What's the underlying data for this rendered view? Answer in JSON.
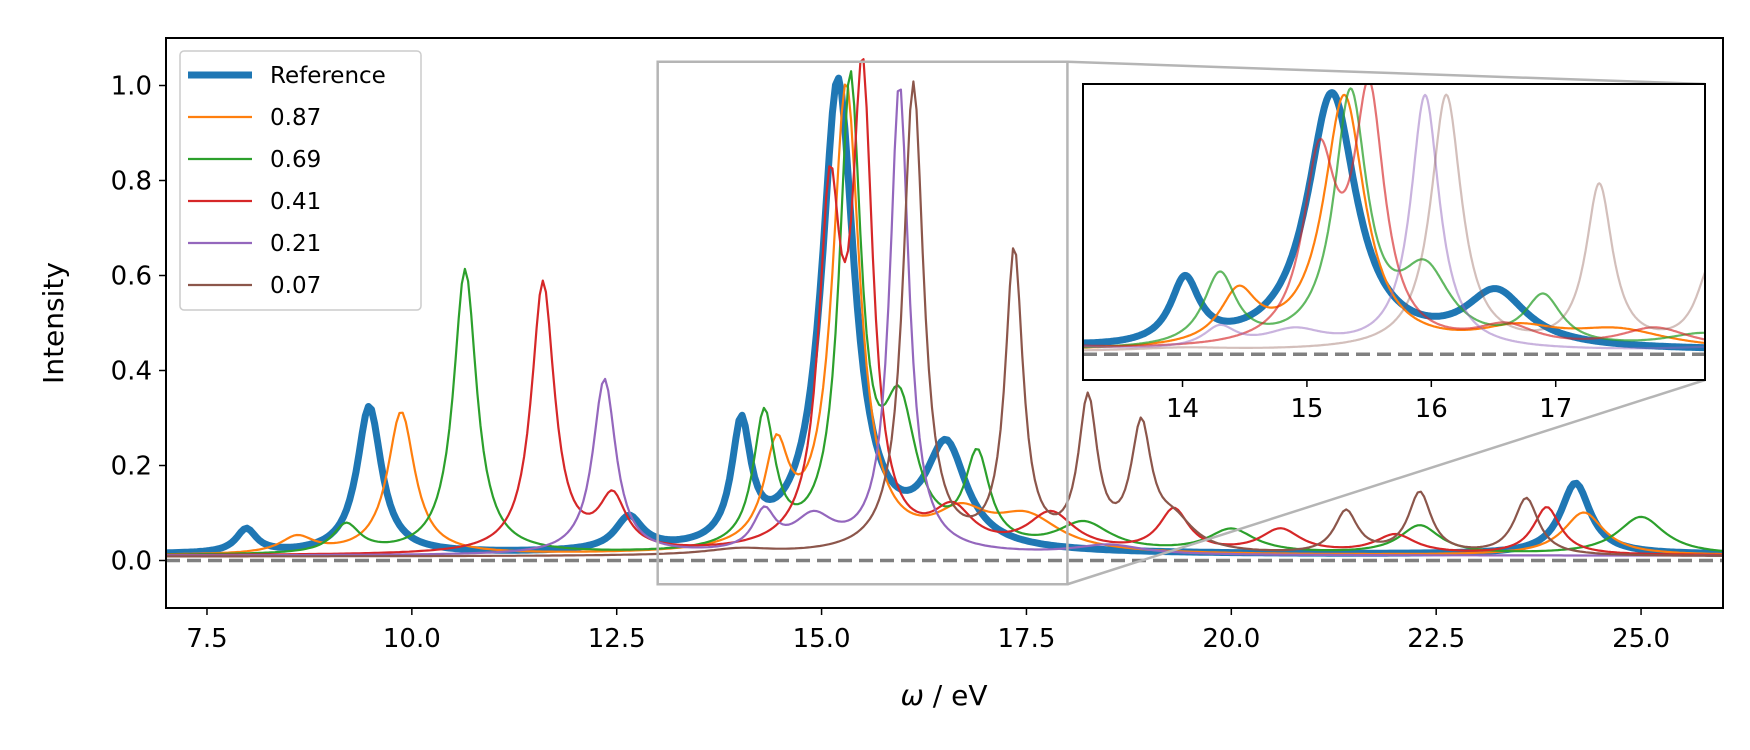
{
  "chart_data": {
    "type": "line",
    "xlabel_symbol": "ω",
    "xlabel_unit": " / eV",
    "ylabel": "Intensity",
    "xlim": [
      7.0,
      26.0
    ],
    "ylim": [
      -0.1,
      1.1
    ],
    "xticks": [
      "7.5",
      "10.0",
      "12.5",
      "15.0",
      "17.5",
      "20.0",
      "22.5",
      "25.0"
    ],
    "xtick_values": [
      7.5,
      10.0,
      12.5,
      15.0,
      17.5,
      20.0,
      22.5,
      25.0
    ],
    "yticks": [
      "0.0",
      "0.2",
      "0.4",
      "0.6",
      "0.8",
      "1.0"
    ],
    "ytick_values": [
      0.0,
      0.2,
      0.4,
      0.6,
      0.8,
      1.0
    ],
    "baseline": 0.0,
    "legend_position": "upper-left",
    "zoom_region": {
      "xlim": [
        13.0,
        18.0
      ],
      "ylim": [
        -0.05,
        1.05
      ]
    },
    "inset": {
      "xlim": [
        13.2,
        18.2
      ],
      "ylim": [
        -0.1,
        1.05
      ],
      "xticks": [
        "14",
        "15",
        "16",
        "17"
      ],
      "xtick_values": [
        14,
        15,
        16,
        17
      ],
      "series_opacity": [
        1.0,
        1.0,
        0.75,
        0.65,
        0.5,
        0.38
      ]
    },
    "series": [
      {
        "name": "Reference",
        "color": "#1f77b4",
        "linewidth": 7,
        "peaks": [
          [
            7.98,
            0.05,
            0.15
          ],
          [
            9.48,
            0.31,
            0.18
          ],
          [
            12.65,
            0.07,
            0.2
          ],
          [
            14.02,
            0.25,
            0.14
          ],
          [
            15.2,
            0.99,
            0.24
          ],
          [
            16.52,
            0.21,
            0.3
          ],
          [
            24.2,
            0.15,
            0.22
          ]
        ],
        "background": 0.012
      },
      {
        "name": "0.87",
        "color": "#ff7f0e",
        "linewidth": 2.2,
        "peaks": [
          [
            8.6,
            0.035,
            0.25
          ],
          [
            9.87,
            0.3,
            0.2
          ],
          [
            14.45,
            0.2,
            0.18
          ],
          [
            15.3,
            0.98,
            0.2
          ],
          [
            16.7,
            0.07,
            0.4
          ],
          [
            17.5,
            0.07,
            0.5
          ],
          [
            24.3,
            0.09,
            0.3
          ]
        ],
        "background": 0.01
      },
      {
        "name": "0.69",
        "color": "#2ca02c",
        "linewidth": 2.2,
        "peaks": [
          [
            9.2,
            0.06,
            0.2
          ],
          [
            10.65,
            0.6,
            0.17
          ],
          [
            14.3,
            0.28,
            0.16
          ],
          [
            15.35,
            0.97,
            0.16
          ],
          [
            15.95,
            0.28,
            0.25
          ],
          [
            16.9,
            0.19,
            0.18
          ],
          [
            18.2,
            0.06,
            0.4
          ],
          [
            20.0,
            0.05,
            0.35
          ],
          [
            22.3,
            0.06,
            0.3
          ],
          [
            25.0,
            0.08,
            0.35
          ]
        ],
        "background": 0.01
      },
      {
        "name": "0.41",
        "color": "#d62728",
        "linewidth": 2.2,
        "peaks": [
          [
            11.6,
            0.57,
            0.17
          ],
          [
            12.45,
            0.11,
            0.2
          ],
          [
            15.1,
            0.7,
            0.16
          ],
          [
            15.5,
            0.95,
            0.15
          ],
          [
            16.6,
            0.08,
            0.3
          ],
          [
            17.8,
            0.08,
            0.35
          ],
          [
            19.3,
            0.09,
            0.22
          ],
          [
            20.6,
            0.05,
            0.3
          ],
          [
            22.0,
            0.04,
            0.3
          ],
          [
            23.85,
            0.1,
            0.2
          ]
        ],
        "background": 0.01
      },
      {
        "name": "0.21",
        "color": "#9467bd",
        "linewidth": 2.2,
        "peaks": [
          [
            12.35,
            0.37,
            0.17
          ],
          [
            14.3,
            0.08,
            0.16
          ],
          [
            14.9,
            0.07,
            0.3
          ],
          [
            15.95,
            0.99,
            0.14
          ],
          [
            18.5,
            0.02,
            0.5
          ]
        ],
        "background": 0.01
      },
      {
        "name": "0.07",
        "color": "#8c564b",
        "linewidth": 2.2,
        "peaks": [
          [
            14.0,
            0.012,
            0.5
          ],
          [
            16.12,
            0.99,
            0.15
          ],
          [
            17.35,
            0.63,
            0.13
          ],
          [
            18.25,
            0.31,
            0.14
          ],
          [
            18.9,
            0.25,
            0.15
          ],
          [
            19.3,
            0.06,
            0.3
          ],
          [
            21.4,
            0.09,
            0.17
          ],
          [
            22.3,
            0.13,
            0.17
          ],
          [
            23.6,
            0.12,
            0.18
          ]
        ],
        "background": 0.008
      }
    ]
  }
}
